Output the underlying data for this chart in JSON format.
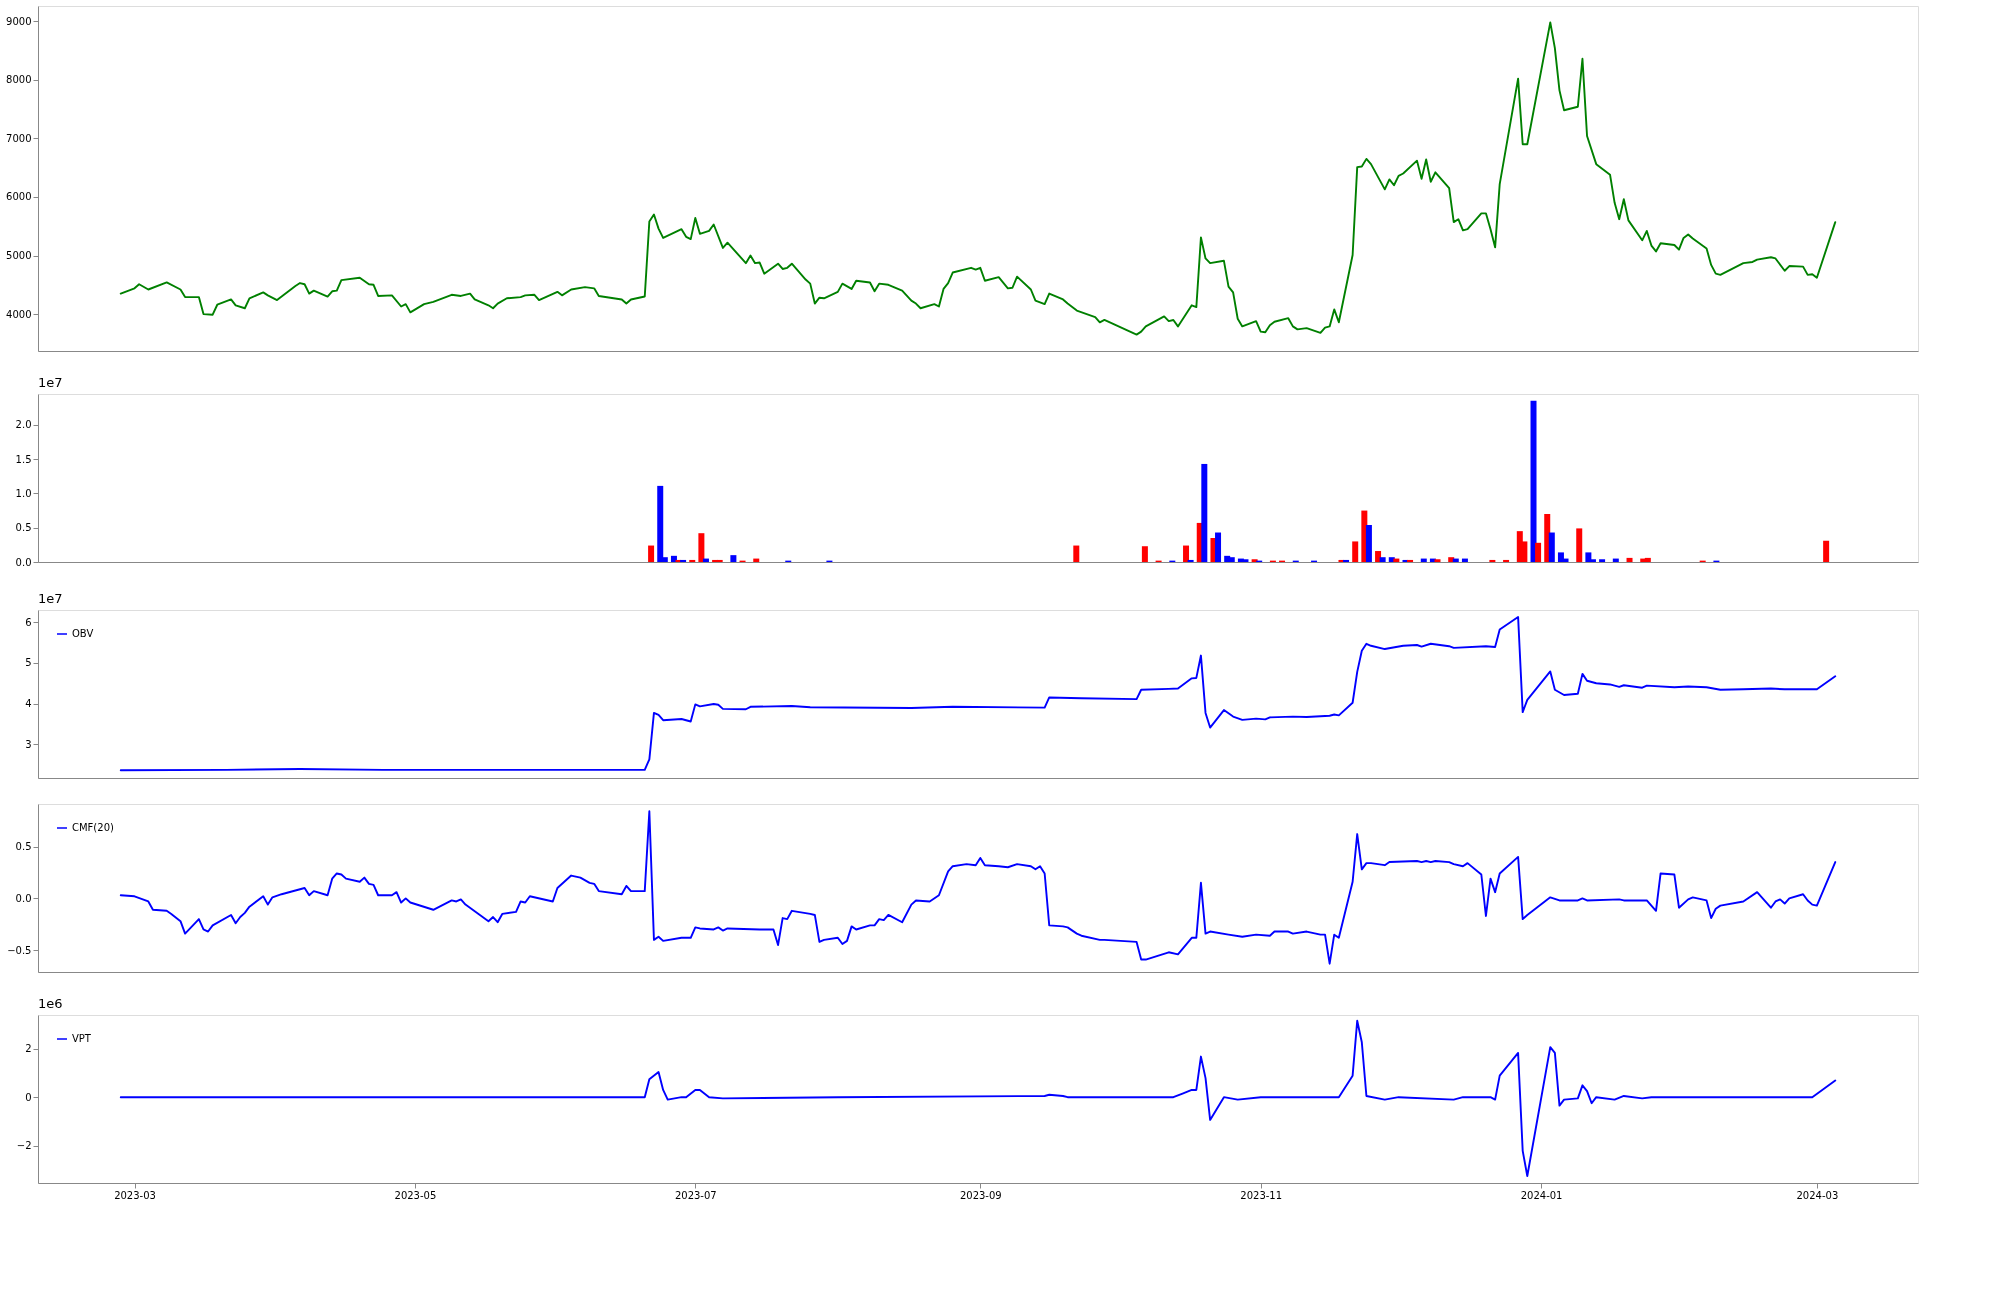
{
  "chart_data": [
    {
      "type": "line",
      "color": "#008000",
      "xlim": [
        "2023-02-08",
        "2024-03-23"
      ],
      "xticks": [
        "2023-03",
        "2023-05",
        "2023-07",
        "2023-09",
        "2023-11",
        "2024-01",
        "2024-03"
      ],
      "ylim": [
        3370,
        9260
      ],
      "yticks": [
        4000,
        5000,
        6000,
        7000,
        8000,
        9000
      ],
      "tick_labels": "y",
      "x": [
        "2023-02-26",
        "2023-03-01",
        "2023-03-02",
        "2023-03-04",
        "2023-03-08",
        "2023-03-11",
        "2023-03-12",
        "2023-03-15",
        "2023-03-16",
        "2023-03-18",
        "2023-03-19",
        "2023-03-22",
        "2023-03-23",
        "2023-03-25",
        "2023-03-26",
        "2023-03-29",
        "2023-03-30",
        "2023-04-01",
        "2023-04-05",
        "2023-04-06",
        "2023-04-07",
        "2023-04-08",
        "2023-04-09",
        "2023-04-12",
        "2023-04-13",
        "2023-04-14",
        "2023-04-15",
        "2023-04-19",
        "2023-04-21",
        "2023-04-22",
        "2023-04-23",
        "2023-04-26",
        "2023-04-28",
        "2023-04-29",
        "2023-04-30",
        "2023-05-03",
        "2023-05-05",
        "2023-05-09",
        "2023-05-11",
        "2023-05-13",
        "2023-05-14",
        "2023-05-17",
        "2023-05-18",
        "2023-05-19",
        "2023-05-21",
        "2023-05-24",
        "2023-05-25",
        "2023-05-27",
        "2023-05-28",
        "2023-06-01",
        "2023-06-02",
        "2023-06-04",
        "2023-06-07",
        "2023-06-09",
        "2023-06-10",
        "2023-06-15",
        "2023-06-16",
        "2023-06-17",
        "2023-06-20",
        "2023-06-21",
        "2023-06-22",
        "2023-06-23",
        "2023-06-24",
        "2023-06-28",
        "2023-06-29",
        "2023-06-30",
        "2023-07-01",
        "2023-07-02",
        "2023-07-04",
        "2023-07-05",
        "2023-07-07",
        "2023-07-08",
        "2023-07-12",
        "2023-07-13",
        "2023-07-14",
        "2023-07-15",
        "2023-07-16",
        "2023-07-19",
        "2023-07-20",
        "2023-07-21",
        "2023-07-22",
        "2023-07-25",
        "2023-07-26",
        "2023-07-27",
        "2023-07-28",
        "2023-07-29",
        "2023-08-01",
        "2023-08-02",
        "2023-08-04",
        "2023-08-05",
        "2023-08-08",
        "2023-08-09",
        "2023-08-10",
        "2023-08-12",
        "2023-08-15",
        "2023-08-17",
        "2023-08-18",
        "2023-08-19",
        "2023-08-22",
        "2023-08-23",
        "2023-08-24",
        "2023-08-25",
        "2023-08-26",
        "2023-08-30",
        "2023-08-31",
        "2023-09-01",
        "2023-09-02",
        "2023-09-05",
        "2023-09-07",
        "2023-09-08",
        "2023-09-09",
        "2023-09-12",
        "2023-09-13",
        "2023-09-15",
        "2023-09-16",
        "2023-09-19",
        "2023-09-20",
        "2023-09-22",
        "2023-09-26",
        "2023-09-27",
        "2023-09-28",
        "2023-10-05",
        "2023-10-06",
        "2023-10-07",
        "2023-10-11",
        "2023-10-12",
        "2023-10-13",
        "2023-10-14",
        "2023-10-17",
        "2023-10-18",
        "2023-10-19",
        "2023-10-20",
        "2023-10-21",
        "2023-10-24",
        "2023-10-25",
        "2023-10-26",
        "2023-10-27",
        "2023-10-28",
        "2023-10-31",
        "2023-11-01",
        "2023-11-02",
        "2023-11-03",
        "2023-11-04",
        "2023-11-07",
        "2023-11-08",
        "2023-11-09",
        "2023-11-11",
        "2023-11-14",
        "2023-11-15",
        "2023-11-16",
        "2023-11-17",
        "2023-11-18",
        "2023-11-21",
        "2023-11-22",
        "2023-11-23",
        "2023-11-24",
        "2023-11-25",
        "2023-11-28",
        "2023-11-29",
        "2023-11-30",
        "2023-12-01",
        "2023-12-02",
        "2023-12-05",
        "2023-12-06",
        "2023-12-07",
        "2023-12-08",
        "2023-12-09",
        "2023-12-12",
        "2023-12-13",
        "2023-12-14",
        "2023-12-15",
        "2023-12-16",
        "2023-12-19",
        "2023-12-20",
        "2023-12-21",
        "2023-12-22",
        "2023-12-23",
        "2023-12-27",
        "2023-12-28",
        "2023-12-29",
        "2024-01-03",
        "2024-01-04",
        "2024-01-05",
        "2024-01-06",
        "2024-01-09",
        "2024-01-10",
        "2024-01-11",
        "2024-01-13",
        "2024-01-16",
        "2024-01-17",
        "2024-01-18",
        "2024-01-19",
        "2024-01-20",
        "2024-01-23",
        "2024-01-24",
        "2024-01-25",
        "2024-01-26",
        "2024-01-27",
        "2024-01-30",
        "2024-01-31",
        "2024-02-01",
        "2024-02-02",
        "2024-02-03",
        "2024-02-06",
        "2024-02-07",
        "2024-02-08",
        "2024-02-09",
        "2024-02-14",
        "2024-02-16",
        "2024-02-17",
        "2024-02-20",
        "2024-02-21",
        "2024-02-23",
        "2024-02-24",
        "2024-02-27",
        "2024-02-28",
        "2024-02-29",
        "2024-03-01",
        "2024-03-05"
      ],
      "values": [
        4350,
        4440,
        4510,
        4420,
        4540,
        4420,
        4290,
        4290,
        4000,
        3990,
        4160,
        4250,
        4150,
        4100,
        4270,
        4370,
        4320,
        4240,
        4480,
        4530,
        4510,
        4350,
        4400,
        4300,
        4390,
        4400,
        4580,
        4620,
        4510,
        4500,
        4310,
        4320,
        4130,
        4170,
        4030,
        4170,
        4210,
        4330,
        4310,
        4350,
        4250,
        4150,
        4100,
        4180,
        4270,
        4290,
        4320,
        4330,
        4240,
        4380,
        4320,
        4420,
        4460,
        4440,
        4310,
        4250,
        4180,
        4250,
        4300,
        5580,
        5700,
        5460,
        5300,
        5450,
        5320,
        5280,
        5640,
        5370,
        5420,
        5530,
        5130,
        5220,
        4870,
        5000,
        4870,
        4880,
        4690,
        4860,
        4770,
        4790,
        4860,
        4590,
        4520,
        4180,
        4280,
        4270,
        4380,
        4520,
        4430,
        4570,
        4540,
        4390,
        4520,
        4500,
        4400,
        4230,
        4180,
        4100,
        4170,
        4130,
        4430,
        4530,
        4710,
        4790,
        4760,
        4790,
        4570,
        4630,
        4440,
        4450,
        4640,
        4420,
        4230,
        4170,
        4350,
        4250,
        4180,
        4060,
        3950,
        3860,
        3900,
        3650,
        3700,
        3790,
        3960,
        3880,
        3900,
        3790,
        4150,
        4120,
        5310,
        4950,
        4870,
        4910,
        4470,
        4370,
        3920,
        3790,
        3880,
        3700,
        3690,
        3810,
        3870,
        3930,
        3790,
        3740,
        3760,
        3680,
        3770,
        3790,
        4080,
        3860,
        5010,
        6510,
        6520,
        6650,
        6560,
        6130,
        6300,
        6200,
        6360,
        6400,
        6620,
        6310,
        6640,
        6260,
        6420,
        6150,
        5570,
        5620,
        5430,
        5450,
        5720,
        5720,
        5450,
        5140,
        6220,
        8020,
        6900,
        6900,
        8980,
        8540,
        7820,
        7480,
        7540,
        8360,
        7040,
        6560,
        6380,
        5900,
        5620,
        5960,
        5600,
        5260,
        5420,
        5170,
        5070,
        5210,
        5180,
        5100,
        5300,
        5360,
        5290,
        5120,
        4840,
        4690,
        4670,
        4870,
        4890,
        4930,
        4970,
        4950,
        4740,
        4820,
        4810,
        4670,
        4680,
        4620,
        5570
      ]
    },
    {
      "type": "bar",
      "xlim": [
        "2023-02-08",
        "2024-03-23"
      ],
      "xticks": [
        "2023-03",
        "2023-05",
        "2023-07",
        "2023-09",
        "2023-11",
        "2024-01",
        "2024-03"
      ],
      "ylim": [
        0,
        2.45
      ],
      "yticks": [
        {
          "value": 0,
          "label": "0.0"
        },
        0.5,
        {
          "value": 1,
          "label": "1.0"
        },
        1.5,
        {
          "value": 2,
          "label": "2.0"
        }
      ],
      "tick_labels": "y",
      "annotations": [
        "1e7"
      ],
      "x": [
        "2023-06-21",
        "2023-06-23",
        "2023-06-24",
        "2023-06-26",
        "2023-06-27",
        "2023-06-28",
        "2023-06-30",
        "2023-07-02",
        "2023-07-03",
        "2023-07-05",
        "2023-07-06",
        "2023-07-09",
        "2023-07-11",
        "2023-07-14",
        "2023-07-21",
        "2023-07-30",
        "2023-09-22",
        "2023-10-07",
        "2023-10-10",
        "2023-10-13",
        "2023-10-16",
        "2023-10-17",
        "2023-10-19",
        "2023-10-20",
        "2023-10-22",
        "2023-10-23",
        "2023-10-25",
        "2023-10-26",
        "2023-10-28",
        "2023-10-29",
        "2023-10-31",
        "2023-11-01",
        "2023-11-04",
        "2023-11-06",
        "2023-11-09",
        "2023-11-13",
        "2023-11-19",
        "2023-11-20",
        "2023-11-22",
        "2023-11-24",
        "2023-11-25",
        "2023-11-27",
        "2023-11-28",
        "2023-11-30",
        "2023-12-01",
        "2023-12-03",
        "2023-12-04",
        "2023-12-07",
        "2023-12-09",
        "2023-12-10",
        "2023-12-13",
        "2023-12-14",
        "2023-12-16",
        "2023-12-22",
        "2023-12-25",
        "2023-12-28",
        "2023-12-29",
        "2023-12-31",
        "2024-01-01",
        "2024-01-03",
        "2024-01-04",
        "2024-01-06",
        "2024-01-07",
        "2024-01-10",
        "2024-01-12",
        "2024-01-13",
        "2024-01-15",
        "2024-01-18",
        "2024-01-21",
        "2024-01-24",
        "2024-01-25",
        "2024-02-06",
        "2024-02-09",
        "2024-03-04"
      ],
      "values": [
        0.24,
        1.11,
        0.07,
        0.09,
        0.03,
        0.03,
        0.03,
        0.42,
        0.05,
        0.03,
        0.03,
        0.1,
        0.02,
        0.05,
        0.02,
        0.02,
        0.24,
        0.23,
        0.02,
        0.02,
        0.24,
        0.03,
        0.57,
        1.43,
        0.35,
        0.43,
        0.09,
        0.07,
        0.05,
        0.04,
        0.04,
        0.02,
        0.02,
        0.02,
        0.02,
        0.02,
        0.03,
        0.03,
        0.3,
        0.75,
        0.54,
        0.16,
        0.07,
        0.07,
        0.05,
        0.03,
        0.03,
        0.05,
        0.05,
        0.04,
        0.07,
        0.05,
        0.05,
        0.03,
        0.03,
        0.45,
        0.3,
        2.35,
        0.28,
        0.7,
        0.43,
        0.14,
        0.05,
        0.49,
        0.14,
        0.04,
        0.04,
        0.05,
        0.06,
        0.05,
        0.06,
        0.02,
        0.02,
        0.31
      ],
      "colors": [
        "#ff0000",
        "#0000ff",
        "#0000ff",
        "#0000ff",
        "#ff0000",
        "#0000ff",
        "#ff0000",
        "#ff0000",
        "#0000ff",
        "#ff0000",
        "#ff0000",
        "#0000ff",
        "#ff0000",
        "#ff0000",
        "#0000ff",
        "#0000ff",
        "#ff0000",
        "#ff0000",
        "#ff0000",
        "#0000ff",
        "#ff0000",
        "#0000ff",
        "#ff0000",
        "#0000ff",
        "#ff0000",
        "#0000ff",
        "#0000ff",
        "#0000ff",
        "#0000ff",
        "#0000ff",
        "#ff0000",
        "#0000ff",
        "#ff0000",
        "#ff0000",
        "#0000ff",
        "#0000ff",
        "#ff0000",
        "#0000ff",
        "#ff0000",
        "#ff0000",
        "#0000ff",
        "#ff0000",
        "#0000ff",
        "#0000ff",
        "#ff0000",
        "#0000ff",
        "#ff0000",
        "#0000ff",
        "#0000ff",
        "#ff0000",
        "#ff0000",
        "#0000ff",
        "#0000ff",
        "#ff0000",
        "#ff0000",
        "#ff0000",
        "#ff0000",
        "#0000ff",
        "#ff0000",
        "#ff0000",
        "#0000ff",
        "#0000ff",
        "#0000ff",
        "#ff0000",
        "#0000ff",
        "#0000ff",
        "#0000ff",
        "#0000ff",
        "#ff0000",
        "#ff0000",
        "#ff0000",
        "#ff0000",
        "#0000ff",
        "#ff0000"
      ]
    },
    {
      "type": "line",
      "legend": "top left",
      "xlim": [
        "2023-02-08",
        "2024-03-23"
      ],
      "xticks": [
        "2023-03",
        "2023-05",
        "2023-07",
        "2023-09",
        "2023-11",
        "2024-01",
        "2024-03"
      ],
      "ylim": [
        2.17,
        6.3
      ],
      "yticks": [
        3,
        4,
        5,
        6
      ],
      "tick_labels": "y",
      "annotations": [
        "1e7"
      ],
      "series": [
        {
          "name": "OBV",
          "color": "#0000ff",
          "x": [
            "2023-02-26",
            "2023-03-21",
            "2023-04-06",
            "2023-04-24",
            "2023-06-10",
            "2023-06-20",
            "2023-06-21",
            "2023-06-22",
            "2023-06-23",
            "2023-06-24",
            "2023-06-28",
            "2023-06-30",
            "2023-07-01",
            "2023-07-02",
            "2023-07-05",
            "2023-07-06",
            "2023-07-07",
            "2023-07-12",
            "2023-07-13",
            "2023-07-22",
            "2023-07-26",
            "2023-08-17",
            "2023-08-26",
            "2023-09-15",
            "2023-09-16",
            "2023-09-23",
            "2023-10-05",
            "2023-10-06",
            "2023-10-12",
            "2023-10-14",
            "2023-10-17",
            "2023-10-18",
            "2023-10-19",
            "2023-10-20",
            "2023-10-21",
            "2023-10-24",
            "2023-10-26",
            "2023-10-28",
            "2023-10-31",
            "2023-11-02",
            "2023-11-03",
            "2023-11-08",
            "2023-11-11",
            "2023-11-16",
            "2023-11-17",
            "2023-11-18",
            "2023-11-21",
            "2023-11-22",
            "2023-11-23",
            "2023-11-24",
            "2023-11-25",
            "2023-11-28",
            "2023-12-02",
            "2023-12-05",
            "2023-12-06",
            "2023-12-08",
            "2023-12-12",
            "2023-12-13",
            "2023-12-20",
            "2023-12-22",
            "2023-12-23",
            "2023-12-27",
            "2023-12-28",
            "2023-12-29",
            "2024-01-03",
            "2024-01-04",
            "2024-01-06",
            "2024-01-09",
            "2024-01-10",
            "2024-01-11",
            "2024-01-13",
            "2024-01-16",
            "2024-01-18",
            "2024-01-19",
            "2024-01-23",
            "2024-01-24",
            "2024-01-30",
            "2024-02-02",
            "2024-02-06",
            "2024-02-09",
            "2024-02-14",
            "2024-02-20",
            "2024-02-23",
            "2024-03-01",
            "2024-03-05"
          ],
          "values": [
            2.36,
            2.37,
            2.39,
            2.37,
            2.37,
            2.37,
            2.63,
            3.77,
            3.72,
            3.59,
            3.62,
            3.56,
            3.98,
            3.93,
            3.99,
            3.97,
            3.87,
            3.86,
            3.92,
            3.94,
            3.91,
            3.89,
            3.92,
            3.9,
            4.15,
            4.13,
            4.11,
            4.34,
            4.36,
            4.37,
            4.62,
            4.63,
            5.18,
            3.77,
            3.41,
            3.84,
            3.68,
            3.6,
            3.63,
            3.61,
            3.66,
            3.68,
            3.67,
            3.7,
            3.73,
            3.71,
            4.02,
            4.78,
            5.3,
            5.47,
            5.42,
            5.34,
            5.42,
            5.44,
            5.4,
            5.47,
            5.41,
            5.37,
            5.41,
            5.39,
            5.82,
            6.13,
            3.79,
            4.09,
            4.79,
            4.34,
            4.21,
            4.24,
            4.73,
            4.56,
            4.5,
            4.47,
            4.41,
            4.45,
            4.39,
            4.44,
            4.4,
            4.42,
            4.4,
            4.34,
            4.35,
            4.37,
            4.35,
            4.35,
            4.67
          ]
        }
      ]
    },
    {
      "type": "line",
      "legend": "top left",
      "xlim": [
        "2023-02-08",
        "2024-03-23"
      ],
      "xticks": [
        "2023-03",
        "2023-05",
        "2023-07",
        "2023-09",
        "2023-11",
        "2024-01",
        "2024-03"
      ],
      "ylim": [
        -0.71,
        0.91
      ],
      "yticks": [
        {
          "value": -0.5,
          "label": "−0.5"
        },
        {
          "value": 0,
          "label": "0.0"
        },
        0.5
      ],
      "tick_labels": "y",
      "series": [
        {
          "name": "CMF(20)",
          "color": "#0000ff",
          "x": [
            "2023-02-26",
            "2023-03-01",
            "2023-03-04",
            "2023-03-05",
            "2023-03-08",
            "2023-03-09",
            "2023-03-11",
            "2023-03-12",
            "2023-03-15",
            "2023-03-16",
            "2023-03-17",
            "2023-03-18",
            "2023-03-22",
            "2023-03-23",
            "2023-03-24",
            "2023-03-25",
            "2023-03-26",
            "2023-03-29",
            "2023-03-30",
            "2023-03-31",
            "2023-04-02",
            "2023-04-07",
            "2023-04-08",
            "2023-04-09",
            "2023-04-12",
            "2023-04-13",
            "2023-04-14",
            "2023-04-15",
            "2023-04-16",
            "2023-04-19",
            "2023-04-20",
            "2023-04-21",
            "2023-04-22",
            "2023-04-23",
            "2023-04-26",
            "2023-04-27",
            "2023-04-28",
            "2023-04-29",
            "2023-04-30",
            "2023-05-05",
            "2023-05-09",
            "2023-05-10",
            "2023-05-11",
            "2023-05-12",
            "2023-05-17",
            "2023-05-18",
            "2023-05-19",
            "2023-05-20",
            "2023-05-23",
            "2023-05-24",
            "2023-05-25",
            "2023-05-26",
            "2023-05-31",
            "2023-06-01",
            "2023-06-04",
            "2023-06-06",
            "2023-06-08",
            "2023-06-09",
            "2023-06-10",
            "2023-06-15",
            "2023-06-16",
            "2023-06-17",
            "2023-06-20",
            "2023-06-21",
            "2023-06-22",
            "2023-06-23",
            "2023-06-24",
            "2023-06-28",
            "2023-06-30",
            "2023-07-01",
            "2023-07-02",
            "2023-07-05",
            "2023-07-06",
            "2023-07-07",
            "2023-07-08",
            "2023-07-15",
            "2023-07-18",
            "2023-07-19",
            "2023-07-20",
            "2023-07-21",
            "2023-07-22",
            "2023-07-26",
            "2023-07-27",
            "2023-07-28",
            "2023-07-29",
            "2023-08-01",
            "2023-08-02",
            "2023-08-03",
            "2023-08-04",
            "2023-08-05",
            "2023-08-08",
            "2023-08-09",
            "2023-08-10",
            "2023-08-11",
            "2023-08-12",
            "2023-08-15",
            "2023-08-17",
            "2023-08-18",
            "2023-08-21",
            "2023-08-23",
            "2023-08-25",
            "2023-08-26",
            "2023-08-29",
            "2023-08-31",
            "2023-09-01",
            "2023-09-02",
            "2023-09-05",
            "2023-09-07",
            "2023-09-09",
            "2023-09-12",
            "2023-09-13",
            "2023-09-14",
            "2023-09-15",
            "2023-09-16",
            "2023-09-19",
            "2023-09-20",
            "2023-09-22",
            "2023-09-23",
            "2023-09-27",
            "2023-09-28",
            "2023-10-05",
            "2023-10-06",
            "2023-10-07",
            "2023-10-12",
            "2023-10-14",
            "2023-10-17",
            "2023-10-18",
            "2023-10-19",
            "2023-10-20",
            "2023-10-21",
            "2023-10-25",
            "2023-10-28",
            "2023-10-31",
            "2023-11-03",
            "2023-11-04",
            "2023-11-07",
            "2023-11-08",
            "2023-11-11",
            "2023-11-14",
            "2023-11-15",
            "2023-11-16",
            "2023-11-17",
            "2023-11-18",
            "2023-11-21",
            "2023-11-22",
            "2023-11-23",
            "2023-11-24",
            "2023-11-25",
            "2023-11-28",
            "2023-11-29",
            "2023-12-05",
            "2023-12-06",
            "2023-12-07",
            "2023-12-08",
            "2023-12-09",
            "2023-12-12",
            "2023-12-13",
            "2023-12-15",
            "2023-12-16",
            "2023-12-19",
            "2023-12-20",
            "2023-12-21",
            "2023-12-22",
            "2023-12-23",
            "2023-12-27",
            "2023-12-28",
            "2023-12-29",
            "2024-01-03",
            "2024-01-05",
            "2024-01-09",
            "2024-01-10",
            "2024-01-11",
            "2024-01-18",
            "2024-01-19",
            "2024-01-24",
            "2024-01-26",
            "2024-01-27",
            "2024-01-30",
            "2024-01-31",
            "2024-02-02",
            "2024-02-03",
            "2024-02-06",
            "2024-02-07",
            "2024-02-08",
            "2024-02-09",
            "2024-02-14",
            "2024-02-17",
            "2024-02-20",
            "2024-02-21",
            "2024-02-22",
            "2024-02-23",
            "2024-02-24",
            "2024-02-27",
            "2024-02-28",
            "2024-02-29",
            "2024-03-01",
            "2024-03-05"
          ],
          "values": [
            0.03,
            0.02,
            -0.03,
            -0.11,
            -0.12,
            -0.15,
            -0.22,
            -0.34,
            -0.2,
            -0.3,
            -0.32,
            -0.26,
            -0.16,
            -0.24,
            -0.18,
            -0.14,
            -0.08,
            0.02,
            -0.06,
            0.01,
            0.04,
            0.1,
            0.03,
            0.07,
            0.03,
            0.19,
            0.24,
            0.23,
            0.19,
            0.16,
            0.2,
            0.14,
            0.13,
            0.03,
            0.03,
            0.06,
            -0.04,
            0.0,
            -0.04,
            -0.11,
            -0.02,
            -0.03,
            -0.01,
            -0.06,
            -0.22,
            -0.18,
            -0.23,
            -0.15,
            -0.13,
            -0.03,
            -0.04,
            0.02,
            -0.03,
            0.1,
            0.22,
            0.2,
            0.15,
            0.14,
            0.07,
            0.04,
            0.12,
            0.07,
            0.07,
            0.84,
            -0.4,
            -0.37,
            -0.41,
            -0.38,
            -0.38,
            -0.28,
            -0.29,
            -0.3,
            -0.28,
            -0.31,
            -0.29,
            -0.3,
            -0.3,
            -0.45,
            -0.19,
            -0.2,
            -0.12,
            -0.15,
            -0.16,
            -0.42,
            -0.4,
            -0.38,
            -0.44,
            -0.41,
            -0.27,
            -0.3,
            -0.26,
            -0.26,
            -0.2,
            -0.21,
            -0.16,
            -0.23,
            -0.06,
            -0.02,
            -0.03,
            0.03,
            0.26,
            0.31,
            0.33,
            0.32,
            0.39,
            0.32,
            0.31,
            0.3,
            0.33,
            0.31,
            0.28,
            0.31,
            0.24,
            -0.26,
            -0.27,
            -0.28,
            -0.34,
            -0.36,
            -0.4,
            -0.4,
            -0.42,
            -0.59,
            -0.59,
            -0.52,
            -0.54,
            -0.38,
            -0.38,
            0.15,
            -0.34,
            -0.32,
            -0.35,
            -0.37,
            -0.35,
            -0.36,
            -0.32,
            -0.32,
            -0.34,
            -0.32,
            -0.35,
            -0.35,
            -0.63,
            -0.35,
            -0.38,
            0.16,
            0.62,
            0.28,
            0.34,
            0.34,
            0.32,
            0.35,
            0.36,
            0.35,
            0.36,
            0.35,
            0.36,
            0.35,
            0.33,
            0.31,
            0.34,
            0.23,
            -0.17,
            0.19,
            0.06,
            0.24,
            0.4,
            -0.2,
            -0.16,
            0.01,
            -0.02,
            -0.02,
            0.0,
            -0.02,
            -0.01,
            -0.02,
            -0.02,
            -0.12,
            0.24,
            0.23,
            -0.09,
            -0.01,
            0.01,
            -0.02,
            -0.19,
            -0.1,
            -0.07,
            -0.03,
            0.06,
            -0.09,
            -0.03,
            -0.01,
            -0.05,
            0.0,
            0.04,
            -0.02,
            -0.06,
            -0.07,
            0.35
          ]
        }
      ]
    },
    {
      "type": "line",
      "legend": "top left",
      "xlim": [
        "2023-02-08",
        "2024-03-23"
      ],
      "xticks": [
        "2023-03",
        "2023-05",
        "2023-07",
        "2023-09",
        "2023-11",
        "2024-01",
        "2024-03"
      ],
      "ylim": [
        -3.55,
        3.4
      ],
      "yticks": [
        {
          "value": -2,
          "label": "−2"
        },
        0,
        2
      ],
      "annotations": [
        "1e6"
      ],
      "series": [
        {
          "name": "VPT",
          "color": "#0000ff",
          "x": [
            "2023-02-26",
            "2023-06-20",
            "2023-06-21",
            "2023-06-23",
            "2023-06-24",
            "2023-06-25",
            "2023-06-28",
            "2023-06-29",
            "2023-07-01",
            "2023-07-02",
            "2023-07-04",
            "2023-07-07",
            "2023-08-01",
            "2023-09-15",
            "2023-09-16",
            "2023-09-19",
            "2023-09-20",
            "2023-10-13",
            "2023-10-15",
            "2023-10-17",
            "2023-10-18",
            "2023-10-19",
            "2023-10-20",
            "2023-10-21",
            "2023-10-24",
            "2023-10-27",
            "2023-11-01",
            "2023-11-18",
            "2023-11-21",
            "2023-11-22",
            "2023-11-23",
            "2023-11-24",
            "2023-11-28",
            "2023-12-01",
            "2023-12-13",
            "2023-12-15",
            "2023-12-21",
            "2023-12-22",
            "2023-12-23",
            "2023-12-27",
            "2023-12-28",
            "2023-12-29",
            "2024-01-03",
            "2024-01-04",
            "2024-01-05",
            "2024-01-06",
            "2024-01-09",
            "2024-01-10",
            "2024-01-11",
            "2024-01-12",
            "2024-01-13",
            "2024-01-17",
            "2024-01-19",
            "2024-01-23",
            "2024-01-25",
            "2024-02-29",
            "2024-03-05"
          ],
          "values": [
            0,
            0,
            0.74,
            1.04,
            0.3,
            -0.1,
            0,
            0,
            0.3,
            0.3,
            0,
            -0.05,
            0,
            0.05,
            0.1,
            0.05,
            0,
            0,
            0.15,
            0.3,
            0.3,
            1.68,
            0.79,
            -0.94,
            0,
            -0.1,
            0,
            0,
            0.89,
            3.16,
            2.27,
            0.05,
            -0.1,
            0,
            -0.1,
            0,
            0,
            -0.1,
            0.89,
            1.83,
            -2.22,
            -3.26,
            2.07,
            1.83,
            -0.35,
            -0.1,
            -0.05,
            0.49,
            0.25,
            -0.25,
            0,
            -0.1,
            0.05,
            -0.05,
            0,
            0,
            0.69
          ]
        }
      ]
    }
  ]
}
